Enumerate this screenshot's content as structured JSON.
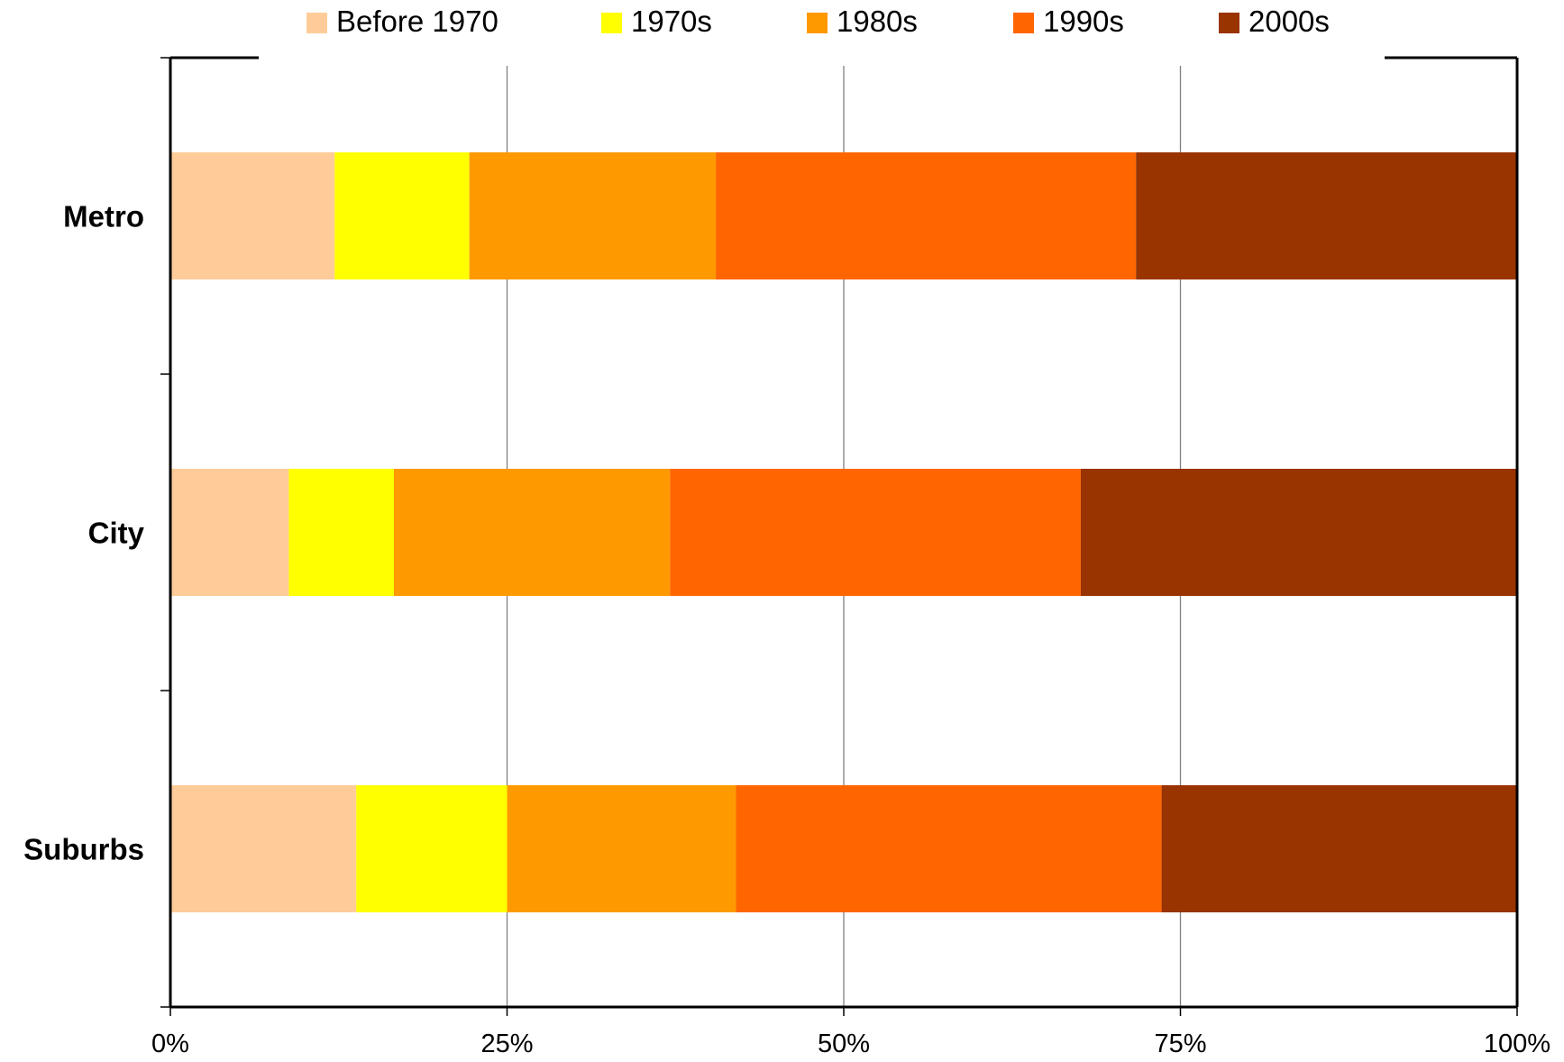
{
  "chart_data": {
    "type": "bar",
    "orientation": "horizontal",
    "stacked": "percent",
    "categories": [
      "Metro",
      "City",
      "Suburbs"
    ],
    "series": [
      {
        "name": "Before 1970",
        "color": "#FFCC99",
        "values": [
          12.2,
          8.8,
          13.8
        ]
      },
      {
        "name": "1970s",
        "color": "#FFFF00",
        "values": [
          10.0,
          7.8,
          11.2
        ]
      },
      {
        "name": "1980s",
        "color": "#FF9900",
        "values": [
          18.3,
          20.5,
          17.0
        ]
      },
      {
        "name": "1990s",
        "color": "#FF6600",
        "values": [
          31.2,
          30.5,
          31.6
        ]
      },
      {
        "name": "2000s",
        "color": "#993300",
        "values": [
          28.3,
          32.4,
          26.4
        ]
      }
    ],
    "xlim": [
      0,
      100
    ],
    "xticks": [
      0,
      25,
      50,
      75,
      100
    ],
    "xtick_labels": [
      "0%",
      "25%",
      "50%",
      "75%",
      "100%"
    ],
    "grid": "vertical",
    "legend": "top",
    "title": "",
    "xlabel": "",
    "ylabel": ""
  }
}
